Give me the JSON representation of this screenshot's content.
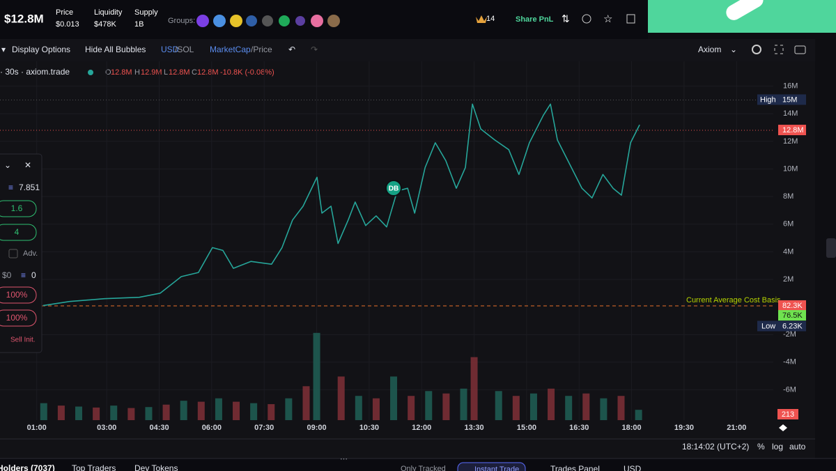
{
  "header": {
    "market_cap": "$12.8M",
    "price_label": "Price",
    "price": "$0.013",
    "liquidity_label": "Liquidity",
    "liquidity": "$478K",
    "supply_label": "Supply",
    "supply": "1B",
    "groups_label": "Groups:",
    "count": "14",
    "share": "Share PnL"
  },
  "toolbar": {
    "display": "Display Options",
    "hide": "Hide All Bubbles",
    "usd": "USD",
    "sol": "/SOL",
    "mcap": "MarketCap",
    "price": "/Price",
    "source": "Axiom"
  },
  "legend": {
    "interval": "· 30s · axiom.trade",
    "o": "O",
    "o_value": "12.8M",
    "h": "H",
    "h_value": "12.9M",
    "l": "L",
    "l_value": "12.8M",
    "c": "C",
    "c_value": "12.8M",
    "change": "-10.8K (-0.08%)"
  },
  "panel": {
    "balance": "7.851",
    "preset1": "1.6",
    "preset2": "4",
    "adv": "Adv.",
    "usd": "$0",
    "sol": "0",
    "pct1": "100%",
    "pct2": "100%",
    "sell": "Sell Init."
  },
  "bubble": "DB",
  "footer": {
    "clock": "18:14:02 (UTC+2)",
    "percent": "%",
    "log": "log",
    "auto": "auto"
  },
  "tabs": [
    "Holders (7037)",
    "Top Traders",
    "Dev Tokens",
    "Only Tracked",
    "Instant Trade",
    "Trades Panel",
    "USD"
  ],
  "chart_data": {
    "type": "line",
    "color": "#26a69a",
    "x": [
      1.18,
      1.94,
      2.93,
      3.93,
      4.53,
      5.13,
      5.62,
      6.02,
      6.32,
      6.62,
      7.12,
      7.71,
      8.01,
      8.31,
      8.61,
      9.01,
      9.15,
      9.41,
      9.61,
      9.9,
      10.1,
      10.4,
      10.7,
      11.0,
      11.3,
      11.6,
      11.8,
      12.1,
      12.39,
      12.69,
      12.99,
      13.25,
      13.45,
      13.69,
      14.09,
      14.49,
      14.78,
      15.08,
      15.48,
      15.68,
      15.88,
      16.28,
      16.58,
      16.87,
      17.18,
      17.47,
      17.71,
      17.97,
      18.23
    ],
    "values": [
      100000,
      400000,
      600000,
      700000,
      1000000,
      2200000,
      2500000,
      4300000,
      4100000,
      2800000,
      3300000,
      3100000,
      4300000,
      6300000,
      7300000,
      9400000,
      6800000,
      7300000,
      4600000,
      6300000,
      7600000,
      5900000,
      6600000,
      5800000,
      8400000,
      8600000,
      6800000,
      10100000,
      11900000,
      10600000,
      8600000,
      10100000,
      14700000,
      12900000,
      12100000,
      11400000,
      9600000,
      11900000,
      13900000,
      14700000,
      12100000,
      10100000,
      8600000,
      7900000,
      9600000,
      8600000,
      8100000,
      11900000,
      13200000
    ],
    "xlim": [
      -0.05,
      22.05
    ],
    "xticks": [
      {
        "value": 1,
        "label": "01:00"
      },
      {
        "value": 3,
        "label": "03:00"
      },
      {
        "value": 4.5,
        "label": "04:30"
      },
      {
        "value": 6,
        "label": "06:00"
      },
      {
        "value": 7.5,
        "label": "07:30"
      },
      {
        "value": 9,
        "label": "09:00"
      },
      {
        "value": 10.5,
        "label": "10:30"
      },
      {
        "value": 12,
        "label": "12:00"
      },
      {
        "value": 13.5,
        "label": "13:30"
      },
      {
        "value": 15,
        "label": "15:00"
      },
      {
        "value": 16.5,
        "label": "16:30"
      },
      {
        "value": 18,
        "label": "18:00"
      },
      {
        "value": 19.5,
        "label": "19:30"
      },
      {
        "value": 21,
        "label": "21:00"
      }
    ],
    "ylim": [
      -8200000,
      17800000
    ],
    "yticks": [
      {
        "value": 16000000,
        "label": "16M"
      },
      {
        "value": 14000000,
        "label": "14M"
      },
      {
        "value": 12000000,
        "label": "12M"
      },
      {
        "value": 10000000,
        "label": "10M"
      },
      {
        "value": 8000000,
        "label": "8M"
      },
      {
        "value": 6000000,
        "label": "6M"
      },
      {
        "value": 4000000,
        "label": "4M"
      },
      {
        "value": 2000000,
        "label": "2M"
      },
      {
        "value": -2000000,
        "label": "-2M"
      },
      {
        "value": -4000000,
        "label": "-4M"
      },
      {
        "value": -6000000,
        "label": "-6M"
      }
    ],
    "grid": true,
    "markers": {
      "high": {
        "label": "High",
        "value": 15000000,
        "value_label": "15M"
      },
      "last": {
        "value": 12800000,
        "value_label": "12.8M"
      },
      "cost_basis": {
        "label": "Current Average Cost Basis",
        "value": 82300,
        "value_label": "82.3K"
      },
      "entry": {
        "value": 76500,
        "value_label": "76.5K"
      },
      "low": {
        "label": "Low",
        "value": 6230,
        "value_label": "6.23K"
      }
    },
    "volume": {
      "x": [
        1.2,
        1.7,
        2.2,
        2.7,
        3.2,
        3.7,
        4.2,
        4.7,
        5.2,
        5.7,
        6.2,
        6.7,
        7.2,
        7.7,
        8.2,
        8.7,
        9.0,
        9.7,
        10.2,
        10.7,
        11.2,
        11.7,
        12.2,
        12.7,
        13.2,
        13.5,
        14.2,
        14.7,
        15.2,
        15.7,
        16.2,
        16.7,
        17.2,
        17.7,
        18.2
      ],
      "values": [
        350,
        300,
        280,
        260,
        300,
        250,
        270,
        320,
        400,
        380,
        450,
        380,
        350,
        330,
        450,
        700,
        1800,
        900,
        500,
        450,
        900,
        500,
        600,
        550,
        650,
        1300,
        600,
        500,
        550,
        650,
        500,
        550,
        450,
        500,
        213
      ],
      "value_labels": [
        null,
        null,
        null,
        null,
        null,
        null,
        null,
        null,
        null,
        null,
        null,
        null,
        null,
        null,
        null,
        null,
        null,
        null,
        null,
        null,
        null,
        null,
        null,
        null,
        null,
        null,
        null,
        null,
        null,
        null,
        null,
        null,
        null,
        null,
        "213"
      ],
      "ylim": [
        0,
        2300
      ]
    }
  }
}
